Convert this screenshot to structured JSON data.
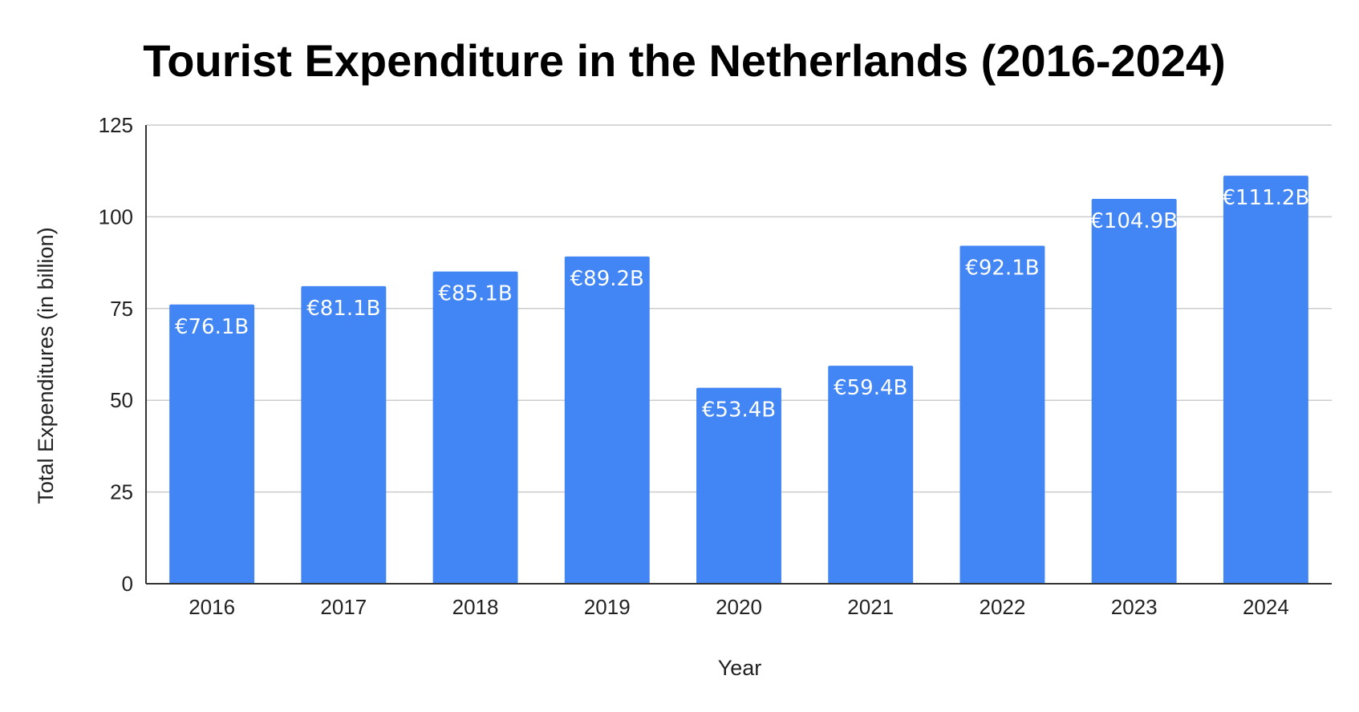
{
  "chart_data": {
    "type": "bar",
    "title": "Tourist Expenditure in the Netherlands (2016-2024)",
    "xlabel": "Year",
    "ylabel": "Total Expenditures (in billion)",
    "categories": [
      "2016",
      "2017",
      "2018",
      "2019",
      "2020",
      "2021",
      "2022",
      "2023",
      "2024"
    ],
    "values": [
      76.1,
      81.1,
      85.1,
      89.2,
      53.4,
      59.4,
      92.1,
      104.9,
      111.2
    ],
    "data_labels": [
      "€76.1B",
      "€81.1B",
      "€85.1B",
      "€89.2B",
      "€53.4B",
      "€59.4B",
      "€92.1B",
      "€104.9B",
      "€111.2B"
    ],
    "ylim": [
      0,
      125
    ],
    "yticks": [
      0,
      25,
      50,
      75,
      100,
      125
    ],
    "grid": true,
    "legend": "none",
    "colors": {
      "bar": "#4285f4"
    }
  }
}
